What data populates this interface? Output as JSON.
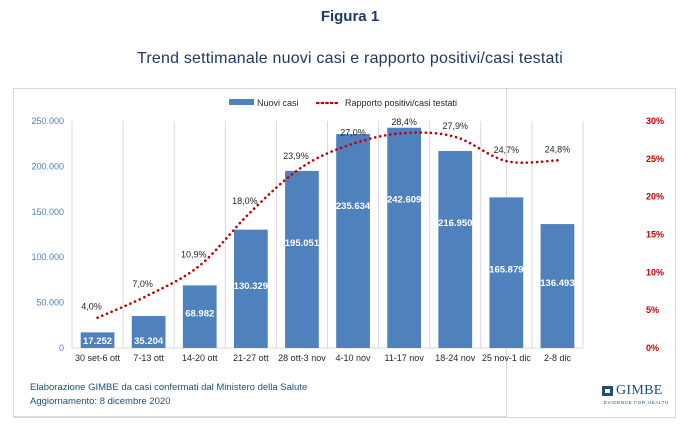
{
  "figure_label": "Figura 1",
  "figure_title": "Trend settimanale nuovi casi e rapporto positivi/casi testati",
  "footer": {
    "source": "Elaborazione GIMBE da casi confermati dal Ministero della Salute",
    "updated": "Aggiornamento: 8 dicembre 2020"
  },
  "logo": {
    "name": "GIMBE",
    "tagline": "EVIDENCE FOR HEALTH"
  },
  "colors": {
    "bars": "#4f81bd",
    "line": "#c00000",
    "left_axis": "#4f81bd",
    "right_axis": "#c00000",
    "title": "#1f3864"
  },
  "chart_data": {
    "type": "bar+line",
    "title": "Trend settimanale nuovi casi e rapporto positivi/casi testati",
    "categories": [
      "30 set-6 ott",
      "7-13 ott",
      "14-20 ott",
      "21-27 ott",
      "28 ott-3 nov",
      "4-10 nov",
      "11-17 nov",
      "18-24 nov",
      "25 nov-1 dic",
      "2-8 dic"
    ],
    "series": [
      {
        "name": "Nuovi casi",
        "type": "bar",
        "axis": "left",
        "values": [
          17252,
          35204,
          68982,
          130329,
          195051,
          235634,
          242609,
          216950,
          165879,
          136493
        ],
        "labels": [
          "17.252",
          "35.204",
          "68.982",
          "130.329",
          "195.051",
          "235.634",
          "242.609",
          "216.950",
          "165.879",
          "136.493"
        ]
      },
      {
        "name": "Rapporto positivi/casi testati",
        "type": "line",
        "style": "dotted",
        "axis": "right",
        "values": [
          4.0,
          7.0,
          10.9,
          18.0,
          23.9,
          27.0,
          28.4,
          27.9,
          24.7,
          24.8
        ],
        "labels": [
          "4,0%",
          "7,0%",
          "10,9%",
          "18,0%",
          "23,9%",
          "27,0%",
          "28,4%",
          "27,9%",
          "24,7%",
          "24,8%"
        ]
      }
    ],
    "y_left": {
      "range": [
        0,
        250000
      ],
      "ticks": [
        "0",
        "50.000",
        "100.000",
        "150.000",
        "200.000",
        "250.000"
      ]
    },
    "y_right": {
      "range": [
        0,
        30
      ],
      "ticks": [
        "0%",
        "5%",
        "10%",
        "15%",
        "20%",
        "25%",
        "30%"
      ]
    },
    "xlabel": "",
    "ylabel": "",
    "grid": "vertical category separators",
    "legend": {
      "position": "top",
      "entries": [
        "Nuovi casi",
        "Rapporto positivi/casi testati"
      ]
    }
  }
}
